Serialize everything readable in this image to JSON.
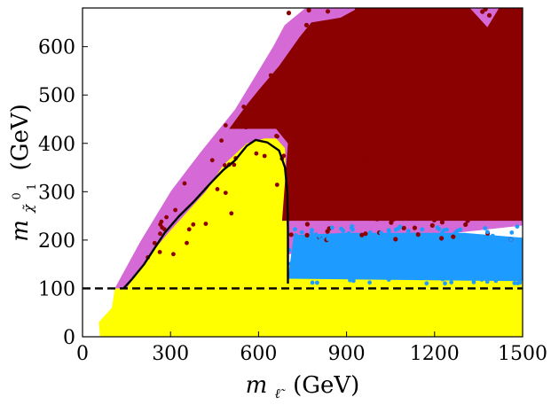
{
  "chart_data": {
    "type": "scatter",
    "title": "",
    "xlabel": "m",
    "xlabel_sub": "ℓ̃",
    "xlabel_unit": "(GeV)",
    "ylabel": "m",
    "ylabel_sub": "χ̃",
    "ylabel_sup": "0",
    "ylabel_subsub": "1",
    "ylabel_unit": "(GeV)",
    "xlim": [
      0,
      1500
    ],
    "ylim": [
      0,
      680
    ],
    "xticks": [
      0,
      300,
      600,
      900,
      1200,
      1500
    ],
    "yticks": [
      0,
      100,
      200,
      300,
      400,
      500,
      600
    ],
    "grid": false,
    "kinematic_boundary": "m_chi = m_slepton",
    "colors": {
      "yellow": "#ffff00",
      "violet": "#d569d5",
      "blue": "#1e9bff",
      "darkred": "#8b0000",
      "line": "#000000"
    },
    "series": [
      {
        "name": "yellow region",
        "color": "#ffff00",
        "polygon": [
          [
            60,
            0
          ],
          [
            1500,
            0
          ],
          [
            1500,
            100
          ],
          [
            110,
            100
          ],
          [
            100,
            60
          ],
          [
            55,
            30
          ]
        ]
      },
      {
        "name": "yellow band (between 100 and stop)",
        "color": "#ffff00",
        "polygon": [
          [
            95,
            100
          ],
          [
            1500,
            100
          ],
          [
            1500,
            140
          ],
          [
            1300,
            150
          ],
          [
            1100,
            150
          ],
          [
            900,
            150
          ],
          [
            700,
            150
          ],
          [
            695,
            105
          ],
          [
            140,
            100
          ]
        ]
      },
      {
        "name": "violet region",
        "color": "#d569d5",
        "polygon": [
          [
            110,
            100
          ],
          [
            690,
            100
          ],
          [
            700,
            170
          ],
          [
            880,
            190
          ],
          [
            1000,
            200
          ],
          [
            1200,
            210
          ],
          [
            1500,
            230
          ],
          [
            1500,
            680
          ],
          [
            1440,
            680
          ],
          [
            720,
            680
          ],
          [
            650,
            600
          ],
          [
            520,
            470
          ],
          [
            400,
            380
          ],
          [
            300,
            300
          ],
          [
            200,
            200
          ]
        ]
      },
      {
        "name": "blue band low",
        "color": "#1e9bff",
        "polygon": [
          [
            700,
            120
          ],
          [
            1500,
            115
          ],
          [
            1500,
            205
          ],
          [
            1300,
            215
          ],
          [
            1100,
            215
          ],
          [
            900,
            215
          ],
          [
            720,
            210
          ]
        ]
      },
      {
        "name": "yellow triangle",
        "color": "#ffff00",
        "polygon": [
          [
            150,
            100
          ],
          [
            695,
            100
          ],
          [
            700,
            140
          ],
          [
            690,
            390
          ],
          [
            660,
            410
          ],
          [
            620,
            410
          ],
          [
            560,
            400
          ],
          [
            480,
            355
          ],
          [
            420,
            300
          ],
          [
            360,
            260
          ],
          [
            300,
            220
          ],
          [
            230,
            170
          ],
          [
            185,
            130
          ]
        ]
      },
      {
        "name": "dark red region",
        "color": "#8b0000",
        "polygon": [
          [
            680,
            240
          ],
          [
            1500,
            240
          ],
          [
            1500,
            680
          ],
          [
            1420,
            680
          ],
          [
            1380,
            640
          ],
          [
            1320,
            680
          ],
          [
            1000,
            680
          ],
          [
            940,
            680
          ],
          [
            880,
            660
          ],
          [
            780,
            650
          ],
          [
            740,
            620
          ],
          [
            670,
            560
          ],
          [
            600,
            510
          ],
          [
            560,
            480
          ],
          [
            500,
            430
          ],
          [
            660,
            430
          ],
          [
            700,
            400
          ]
        ]
      },
      {
        "name": "contour",
        "color": "#000000",
        "line": [
          [
            140,
            100
          ],
          [
            170,
            120
          ],
          [
            210,
            150
          ],
          [
            280,
            215
          ],
          [
            330,
            250
          ],
          [
            380,
            280
          ],
          [
            440,
            320
          ],
          [
            480,
            345
          ],
          [
            520,
            365
          ],
          [
            560,
            395
          ],
          [
            590,
            407
          ],
          [
            630,
            402
          ],
          [
            670,
            385
          ],
          [
            690,
            350
          ],
          [
            698,
            300
          ],
          [
            700,
            220
          ],
          [
            700,
            150
          ],
          [
            700,
            110
          ]
        ]
      },
      {
        "name": "LEP limit",
        "style": "dashed",
        "y": 100
      }
    ]
  }
}
